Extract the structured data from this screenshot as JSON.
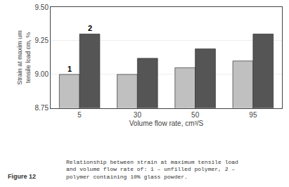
{
  "chart_data": {
    "type": "bar",
    "categories": [
      "5",
      "30",
      "50",
      "95"
    ],
    "series": [
      {
        "name": "1",
        "color": "#c0c0c0",
        "values": [
          9.0,
          9.0,
          9.05,
          9.1
        ]
      },
      {
        "name": "2",
        "color": "#555555",
        "values": [
          9.3,
          9.12,
          9.19,
          9.3
        ]
      }
    ],
    "x_label": "Volume flow rate, cm³/S",
    "y_label": "Strain at maxim um\ntensile load εm, %",
    "ylim": [
      8.75,
      9.5
    ],
    "yticks": [
      8.75,
      {
        "value": 9.0,
        "label": "9.00"
      },
      9.25,
      {
        "value": 9.5,
        "label": "9.50"
      }
    ],
    "grid": true,
    "annotations": [
      {
        "text": "1",
        "x": "5",
        "series": "1",
        "y": 9.0
      },
      {
        "text": "2",
        "x": "5",
        "series": "2",
        "y": 9.3
      },
      {
        "text": "Figure 12"
      },
      {
        "text": "Relationship between strain at maximum tensile load\nand volume flow rate of: 1 – unfilled polymer, 2 –\npolymer containing 10% glass powder."
      }
    ]
  }
}
